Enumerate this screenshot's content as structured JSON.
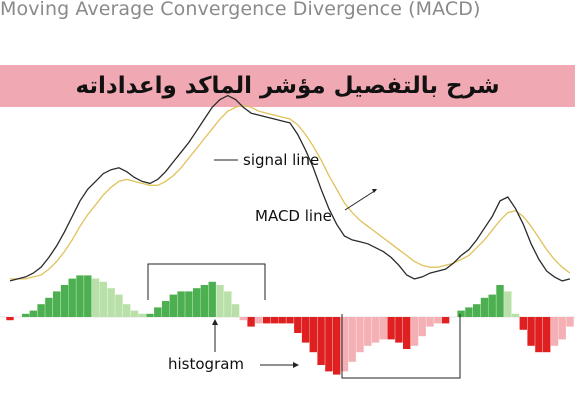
{
  "header": {
    "title": "Moving Average Convergence Divergence (MACD)",
    "banner_text": "شرح بالتفصيل مؤشر الماكد واعداداته"
  },
  "colors": {
    "banner_bg": "#f0a8b2",
    "macd_line": "#2b2b2b",
    "signal_line": "#e0c25a",
    "histogram_positive": "#4caf50",
    "histogram_positive_light": "#b8e0a8",
    "histogram_negative": "#e02020",
    "histogram_negative_light": "#f4b0b4"
  },
  "chart_data": {
    "type": "line",
    "title": "Moving Average Convergence Divergence (MACD)",
    "annotations": {
      "signal_line": "signal line",
      "macd_line": "MACD line",
      "histogram": "histogram"
    },
    "grid": false,
    "x": [
      0,
      1,
      2,
      3,
      4,
      5,
      6,
      7,
      8,
      9,
      10,
      11,
      12,
      13,
      14,
      15,
      16,
      17,
      18,
      19,
      20,
      21,
      22,
      23,
      24,
      25,
      26,
      27,
      28,
      29,
      30,
      31,
      32,
      33,
      34,
      35,
      36,
      37,
      38,
      39,
      40,
      41,
      42,
      43,
      44,
      45,
      46,
      47,
      48,
      49,
      50,
      51,
      52,
      53,
      54,
      55,
      56,
      57,
      58,
      59,
      60,
      61,
      62,
      63,
      64,
      65,
      66,
      67,
      68,
      69,
      70,
      71,
      72
    ],
    "series": [
      {
        "name": "MACD line",
        "values": [
          -3,
          -2,
          -1,
          1,
          4,
          9,
          15,
          22,
          30,
          38,
          44,
          48,
          52,
          54,
          55,
          53,
          50,
          48,
          47,
          49,
          53,
          58,
          63,
          68,
          74,
          80,
          86,
          90,
          92,
          90,
          86,
          83,
          82,
          81,
          80,
          79,
          78,
          72,
          64,
          55,
          44,
          34,
          26,
          20,
          18,
          17,
          16,
          14,
          12,
          9,
          5,
          0,
          -2,
          -1,
          1,
          2,
          3,
          6,
          10,
          13,
          18,
          24,
          30,
          38,
          40,
          34,
          26,
          16,
          8,
          2,
          -1,
          -3,
          -2
        ]
      },
      {
        "name": "signal line",
        "values": [
          -2,
          -2,
          -2,
          -1,
          0,
          3,
          7,
          12,
          18,
          25,
          31,
          36,
          41,
          45,
          48,
          49,
          48,
          47,
          46,
          46,
          48,
          51,
          55,
          60,
          65,
          70,
          75,
          80,
          84,
          86,
          87,
          86,
          84,
          83,
          82,
          81,
          80,
          77,
          72,
          66,
          59,
          51,
          44,
          37,
          32,
          28,
          25,
          22,
          19,
          16,
          13,
          10,
          7,
          5,
          4,
          4,
          5,
          6,
          8,
          10,
          14,
          18,
          23,
          28,
          32,
          33,
          30,
          25,
          19,
          13,
          8,
          4,
          1
        ]
      },
      {
        "name": "histogram",
        "values": [
          -1,
          0,
          1,
          2,
          4,
          6,
          8,
          10,
          12,
          13,
          13,
          12,
          11,
          9,
          7,
          4,
          2,
          1,
          1,
          3,
          5,
          7,
          8,
          8,
          9,
          10,
          11,
          10,
          8,
          4,
          -1,
          -3,
          -2,
          -2,
          -2,
          -2,
          -2,
          -5,
          -8,
          -11,
          -15,
          -17,
          -18,
          -17,
          -14,
          -11,
          -9,
          -8,
          -7,
          -7,
          -8,
          -10,
          -9,
          -6,
          -3,
          -2,
          -2,
          0,
          2,
          3,
          4,
          6,
          7,
          10,
          8,
          1,
          -4,
          -9,
          -11,
          -11,
          -9,
          -7,
          -3
        ]
      }
    ]
  }
}
